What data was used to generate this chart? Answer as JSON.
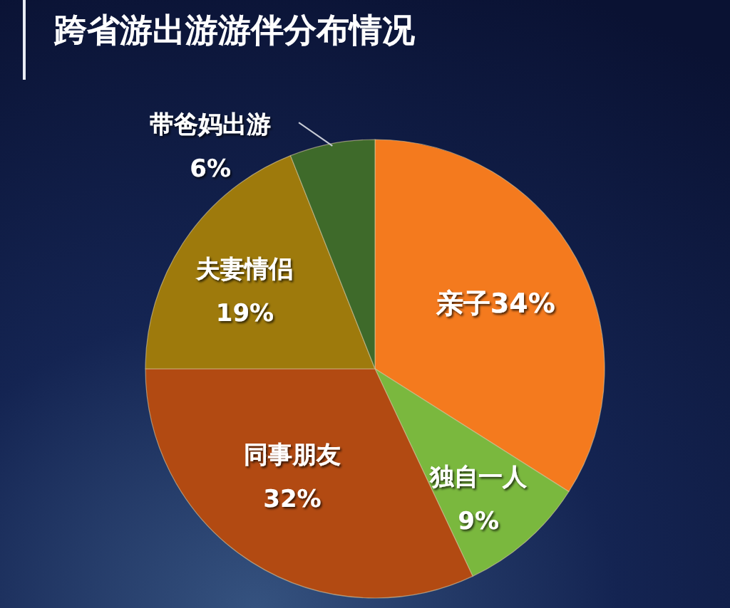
{
  "chart_data": {
    "type": "pie",
    "title": "跨省游出游游伴分布情况",
    "categories": [
      "亲子",
      "独自一人",
      "同事朋友",
      "夫妻情侣",
      "带爸妈出游"
    ],
    "values": [
      34,
      9,
      32,
      19,
      6
    ],
    "colors": [
      "#f47a1e",
      "#7ab83e",
      "#b24a12",
      "#9e7a0c",
      "#3e6a2a"
    ],
    "value_labels": [
      "34%",
      "9%",
      "32%",
      "19%",
      "6%"
    ]
  }
}
